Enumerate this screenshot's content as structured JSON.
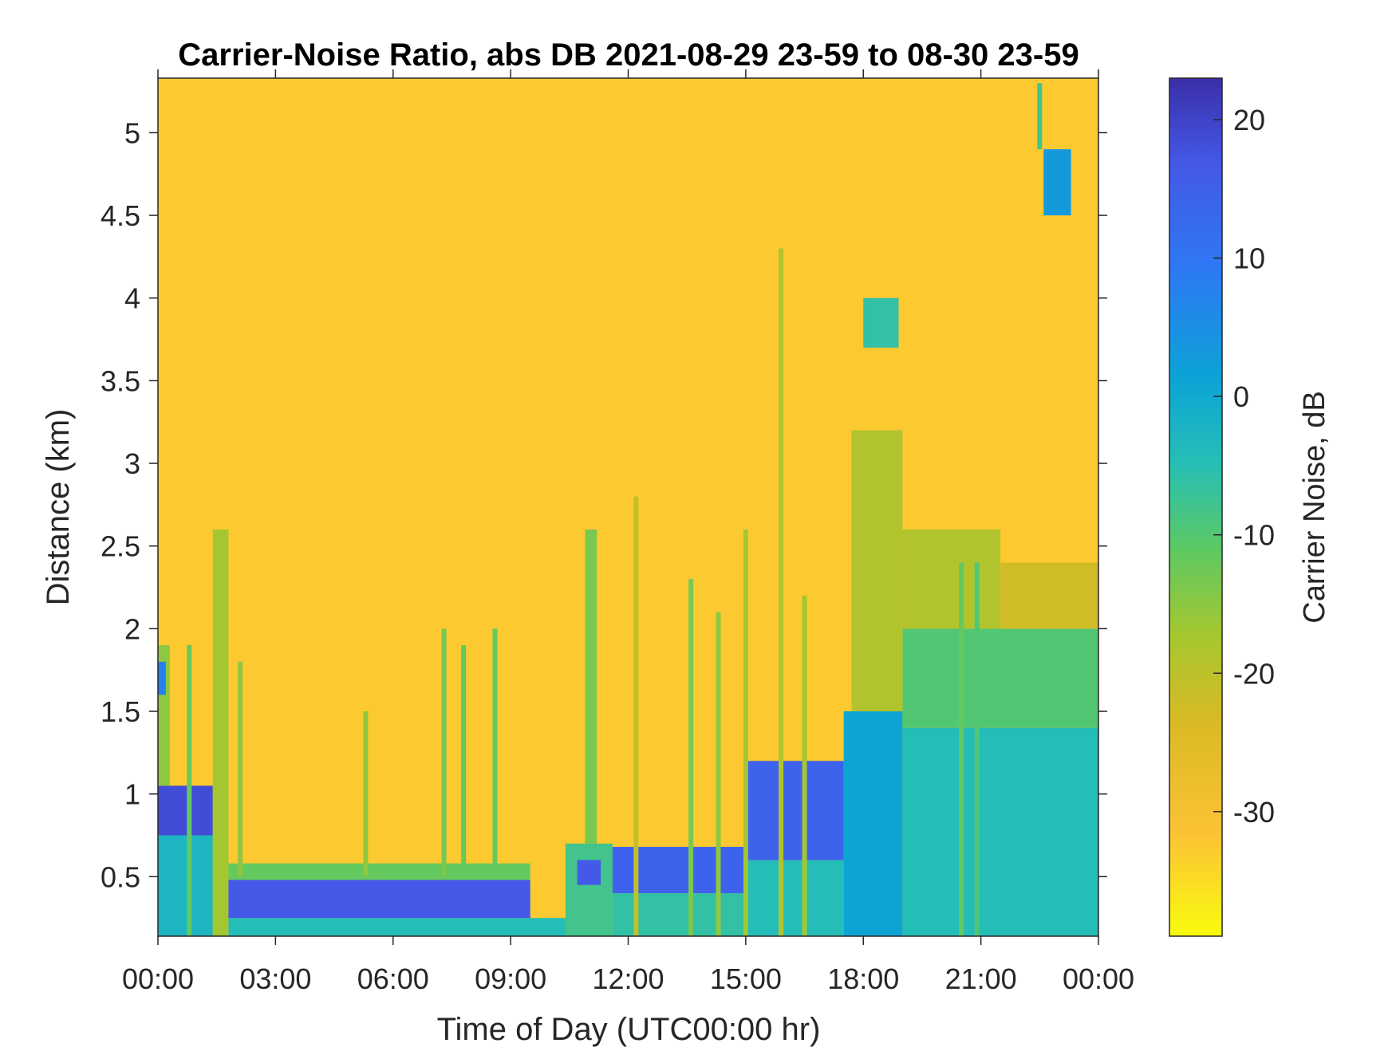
{
  "chart_data": {
    "type": "heatmap",
    "title": "Carrier-Noise Ratio, abs DB 2021-08-29 23-59 to 08-30 23-59",
    "xlabel": "Time of Day (UTC00:00 hr)",
    "ylabel": "Distance (km)",
    "xlim_hours": [
      0,
      24
    ],
    "ylim": [
      0.14,
      5.33
    ],
    "x_ticks": [
      {
        "value": 0,
        "label": "00:00"
      },
      {
        "value": 3,
        "label": "03:00"
      },
      {
        "value": 6,
        "label": "06:00"
      },
      {
        "value": 9,
        "label": "09:00"
      },
      {
        "value": 12,
        "label": "12:00"
      },
      {
        "value": 15,
        "label": "15:00"
      },
      {
        "value": 18,
        "label": "18:00"
      },
      {
        "value": 21,
        "label": "21:00"
      },
      {
        "value": 24,
        "label": "00:00"
      }
    ],
    "y_ticks": [
      {
        "value": 0.5,
        "label": "0.5"
      },
      {
        "value": 1,
        "label": "1"
      },
      {
        "value": 1.5,
        "label": "1.5"
      },
      {
        "value": 2,
        "label": "2"
      },
      {
        "value": 2.5,
        "label": "2.5"
      },
      {
        "value": 3,
        "label": "3"
      },
      {
        "value": 3.5,
        "label": "3.5"
      },
      {
        "value": 4,
        "label": "4"
      },
      {
        "value": 4.5,
        "label": "4.5"
      },
      {
        "value": 5,
        "label": "5"
      }
    ],
    "colorbar": {
      "label": "Carrier Noise, dB",
      "range": [
        -39,
        23
      ],
      "ticks": [
        {
          "value": 20,
          "label": "20"
        },
        {
          "value": 10,
          "label": "10"
        },
        {
          "value": 0,
          "label": "0"
        },
        {
          "value": -10,
          "label": "-10"
        },
        {
          "value": -20,
          "label": "-20"
        },
        {
          "value": -30,
          "label": "-30"
        }
      ],
      "colormap": "parula (reversed)",
      "colors_low_to_high": [
        "#f9fb0e",
        "#fcc236",
        "#d9ba25",
        "#a6c72f",
        "#5ec962",
        "#26bfb5",
        "#0ca3d6",
        "#2e78f4",
        "#4458e8",
        "#3a2fa8"
      ]
    },
    "background_value_db": -33,
    "regions": [
      {
        "t0": 0.0,
        "t1": 1.4,
        "d0": 0.14,
        "d1": 0.75,
        "db": -2
      },
      {
        "t0": 0.0,
        "t1": 1.4,
        "d0": 0.75,
        "d1": 1.05,
        "db": 18
      },
      {
        "t0": 0.0,
        "t1": 0.3,
        "d0": 1.05,
        "d1": 1.9,
        "db": -16
      },
      {
        "t0": 0.0,
        "t1": 0.2,
        "d0": 1.6,
        "d1": 1.8,
        "db": 8
      },
      {
        "t0": 1.4,
        "t1": 1.8,
        "d0": 0.14,
        "d1": 2.6,
        "db": -18
      },
      {
        "t0": 1.8,
        "t1": 10.4,
        "d0": 0.14,
        "d1": 0.25,
        "db": -4
      },
      {
        "t0": 1.8,
        "t1": 9.5,
        "d0": 0.25,
        "d1": 0.48,
        "db": 16
      },
      {
        "t0": 1.8,
        "t1": 9.5,
        "d0": 0.48,
        "d1": 0.58,
        "db": -12
      },
      {
        "t0": 10.4,
        "t1": 11.6,
        "d0": 0.14,
        "d1": 0.7,
        "db": -8
      },
      {
        "t0": 10.9,
        "t1": 11.2,
        "d0": 0.7,
        "d1": 2.6,
        "db": -14
      },
      {
        "t0": 10.7,
        "t1": 11.3,
        "d0": 0.45,
        "d1": 0.6,
        "db": 16
      },
      {
        "t0": 11.6,
        "t1": 15.0,
        "d0": 0.14,
        "d1": 0.4,
        "db": -6
      },
      {
        "t0": 11.6,
        "t1": 15.0,
        "d0": 0.4,
        "d1": 0.68,
        "db": 14
      },
      {
        "t0": 15.0,
        "t1": 17.5,
        "d0": 0.14,
        "d1": 0.6,
        "db": -4
      },
      {
        "t0": 15.0,
        "t1": 17.5,
        "d0": 0.6,
        "d1": 1.2,
        "db": 14
      },
      {
        "t0": 17.5,
        "t1": 19.0,
        "d0": 0.14,
        "d1": 1.5,
        "db": 2
      },
      {
        "t0": 17.7,
        "t1": 19.0,
        "d0": 1.5,
        "d1": 3.2,
        "db": -20
      },
      {
        "t0": 18.0,
        "t1": 18.9,
        "d0": 3.7,
        "d1": 4.0,
        "db": -6
      },
      {
        "t0": 19.0,
        "t1": 24.0,
        "d0": 0.14,
        "d1": 1.4,
        "db": -4
      },
      {
        "t0": 19.0,
        "t1": 24.0,
        "d0": 1.4,
        "d1": 2.0,
        "db": -10
      },
      {
        "t0": 19.0,
        "t1": 21.5,
        "d0": 2.0,
        "d1": 2.6,
        "db": -20
      },
      {
        "t0": 21.5,
        "t1": 24.0,
        "d0": 2.0,
        "d1": 2.4,
        "db": -24
      },
      {
        "t0": 22.6,
        "t1": 23.3,
        "d0": 4.5,
        "d1": 4.9,
        "db": 4
      }
    ],
    "streaks": [
      {
        "t": 0.8,
        "d0": 0.14,
        "d1": 1.9,
        "db": -12
      },
      {
        "t": 2.1,
        "d0": 0.5,
        "d1": 1.8,
        "db": -16
      },
      {
        "t": 5.3,
        "d0": 0.5,
        "d1": 1.5,
        "db": -16
      },
      {
        "t": 7.3,
        "d0": 0.5,
        "d1": 2.0,
        "db": -14
      },
      {
        "t": 7.8,
        "d0": 0.5,
        "d1": 1.9,
        "db": -12
      },
      {
        "t": 8.6,
        "d0": 0.5,
        "d1": 2.0,
        "db": -12
      },
      {
        "t": 12.2,
        "d0": 0.14,
        "d1": 2.8,
        "db": -22
      },
      {
        "t": 13.6,
        "d0": 0.14,
        "d1": 2.3,
        "db": -14
      },
      {
        "t": 14.3,
        "d0": 0.14,
        "d1": 2.1,
        "db": -16
      },
      {
        "t": 15.0,
        "d0": 0.14,
        "d1": 2.6,
        "db": -18
      },
      {
        "t": 15.9,
        "d0": 0.14,
        "d1": 4.3,
        "db": -20
      },
      {
        "t": 16.5,
        "d0": 0.14,
        "d1": 2.2,
        "db": -18
      },
      {
        "t": 20.5,
        "d0": 0.14,
        "d1": 2.4,
        "db": -12
      },
      {
        "t": 20.9,
        "d0": 0.14,
        "d1": 2.4,
        "db": -10
      },
      {
        "t": 22.5,
        "d0": 4.9,
        "d1": 5.3,
        "db": -8
      }
    ]
  }
}
